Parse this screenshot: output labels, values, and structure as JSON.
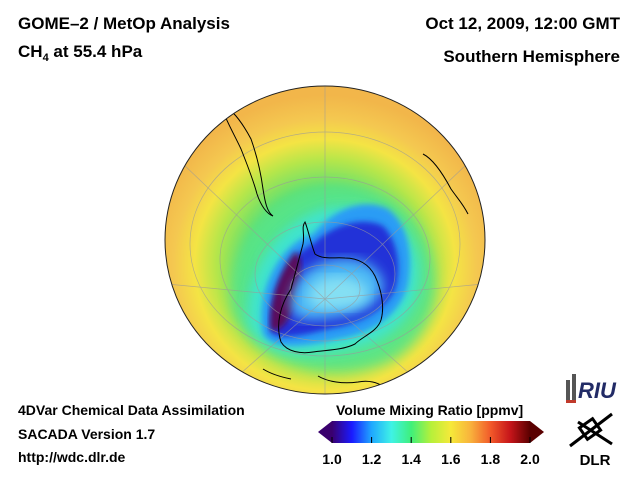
{
  "header": {
    "title_line1": "GOME–2 / MetOp Analysis",
    "species": "CH",
    "species_sub": "4",
    "level_text": " at 55.4 hPa",
    "datetime": "Oct 12, 2009, 12:00 GMT",
    "region": "Southern Hemisphere"
  },
  "footer": {
    "method": "4DVar Chemical Data Assimilation",
    "version": "SACADA Version 1.7",
    "url": "http://wdc.dlr.de"
  },
  "colorbar": {
    "title": "Volume Mixing Ratio [ppmv]",
    "ticks": [
      "1.0",
      "1.2",
      "1.4",
      "1.6",
      "1.8",
      "2.0"
    ],
    "colors": [
      "#3a006e",
      "#1a1aff",
      "#1fa8ff",
      "#3ff2e6",
      "#3ff07a",
      "#b6f03a",
      "#f6e93a",
      "#f8b23c",
      "#f25a2a",
      "#c6151a",
      "#5a0000"
    ]
  },
  "map": {
    "projection": "orthographic",
    "hemisphere": "south",
    "colors": {
      "high": "#f2b64a",
      "mid_high": "#f4e444",
      "mid": "#52e27a",
      "low_mid": "#3ee4d6",
      "low": "#2a9cf5",
      "very_low": "#2030d8",
      "min": "#5a0d5c",
      "coast": "#000000"
    }
  },
  "logos": {
    "riu": "RIU",
    "dlr": "DLR"
  }
}
